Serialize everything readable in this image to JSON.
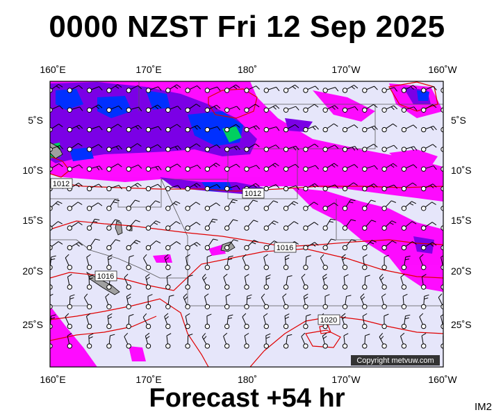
{
  "header": {
    "title": "0000 NZST Fri 12 Sep 2025"
  },
  "footer": {
    "forecast_label": "Forecast +54 hr",
    "code": "IM2"
  },
  "map": {
    "lon_ticks_top": [
      "160˚E",
      "170˚E",
      "180˚",
      "170˚W",
      "160˚W"
    ],
    "lon_ticks_bottom": [
      "160˚E",
      "170˚E",
      "180˚",
      "170˚W",
      "160˚W"
    ],
    "lat_ticks_left": [
      "5˚S",
      "10˚S",
      "15˚S",
      "20˚S",
      "25˚S"
    ],
    "lat_ticks_right": [
      "5˚S",
      "10˚S",
      "15˚S",
      "20˚S",
      "25˚S"
    ],
    "isobar_labels": [
      "1012",
      "1012",
      "1016",
      "1016",
      "1020"
    ],
    "copyright": "Copyright metvuw.com",
    "colors": {
      "ocean": "#e6e6fa",
      "isobar": "#e00000",
      "rain_light": "#ff00ff",
      "rain_medium": "#7b00e6",
      "rain_heavy": "#0030ff",
      "rain_extreme": "#00d060",
      "land": "#a0a0a0"
    }
  }
}
